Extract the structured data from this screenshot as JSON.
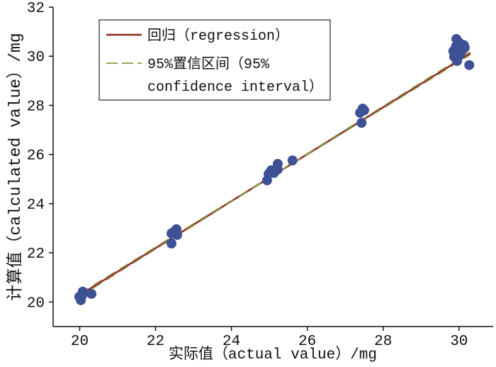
{
  "chart_data": {
    "type": "scatter",
    "xlabel": "实际值（actual value）/mg",
    "ylabel": "计算值（calculated value）/mg",
    "xlim": [
      19.3,
      30.9
    ],
    "ylim": [
      19,
      32
    ],
    "xticks": [
      20,
      22,
      24,
      26,
      28,
      30
    ],
    "yticks": [
      20,
      22,
      24,
      26,
      28,
      30,
      32
    ],
    "grid": false,
    "legend_position": "top-left",
    "series": [
      {
        "type": "scatter",
        "color": "#3e5195",
        "x": [
          19.99,
          20.08,
          20.03,
          20.31,
          20.06,
          22.42,
          22.55,
          22.57,
          22.42,
          22.48,
          24.94,
          24.98,
          25.05,
          25.22,
          25.22,
          25.61,
          25.12,
          27.39,
          27.46,
          27.43,
          27.5,
          29.93,
          30.0,
          30.13,
          30.1,
          29.85,
          29.87,
          29.95,
          30.02,
          30.27,
          30.15,
          29.92,
          30.05
        ],
        "y": [
          20.21,
          20.42,
          20.07,
          20.33,
          20.25,
          22.79,
          22.96,
          22.73,
          22.38,
          22.85,
          24.95,
          25.21,
          25.36,
          25.62,
          25.39,
          25.76,
          25.25,
          27.7,
          27.87,
          27.29,
          27.8,
          30.7,
          30.56,
          30.45,
          30.27,
          30.21,
          29.98,
          29.81,
          30.05,
          29.64,
          30.35,
          30.4,
          30.15
        ]
      },
      {
        "name": "回归（regression）",
        "type": "line",
        "style": "solid",
        "color": "#8c2b1f",
        "x": [
          20.0,
          30.3
        ],
        "y": [
          20.28,
          30.12
        ]
      },
      {
        "name_lines": [
          "95%置信区间（95%",
          "confidence interval）"
        ],
        "type": "line",
        "style": "dashed",
        "color": "#9aa35a",
        "x": [
          20.0,
          25.15,
          30.3
        ],
        "y_lower": [
          20.21,
          25.18,
          30.05
        ],
        "y_upper": [
          20.35,
          25.22,
          30.19
        ]
      }
    ]
  }
}
